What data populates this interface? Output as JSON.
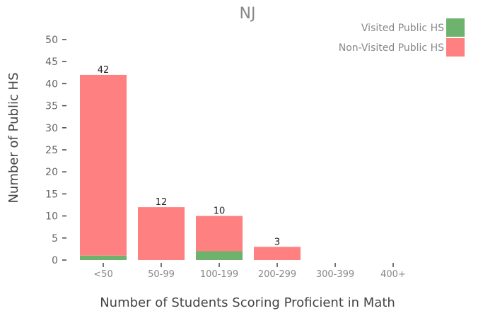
{
  "chart_data": {
    "type": "bar",
    "stacked": true,
    "title": "NJ",
    "xlabel": "Number of Students Scoring Proficient in Math",
    "ylabel": "Number of Public HS",
    "categories": [
      "<50",
      "50-99",
      "100-199",
      "200-299",
      "300-399",
      "400+"
    ],
    "series": [
      {
        "name": "Visited Public HS",
        "color": "#6db36d",
        "values": [
          1,
          0,
          2,
          0,
          0,
          0
        ]
      },
      {
        "name": "Non-Visited Public HS",
        "color": "#ff8080",
        "values": [
          41,
          12,
          8,
          3,
          0,
          0
        ]
      }
    ],
    "totals": [
      42,
      12,
      10,
      3,
      null,
      null
    ],
    "ylim": [
      0,
      50
    ],
    "yticks": [
      0,
      5,
      10,
      15,
      20,
      25,
      30,
      35,
      40,
      45,
      50
    ],
    "legend_position": "top-right",
    "grid": false
  }
}
